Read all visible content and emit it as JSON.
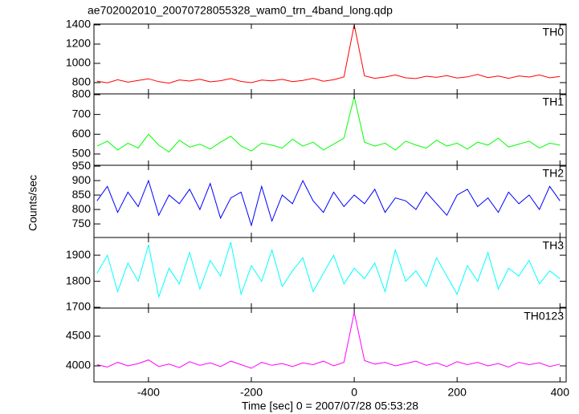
{
  "chart_data": [
    {
      "type": "line",
      "title": "ae702002010_20070728055328_wam0_trn_4band_long.qdp",
      "x": [
        -500,
        -480,
        -460,
        -440,
        -420,
        -400,
        -380,
        -360,
        -340,
        -320,
        -300,
        -280,
        -260,
        -240,
        -220,
        -200,
        -180,
        -160,
        -140,
        -120,
        -100,
        -80,
        -60,
        -40,
        -20,
        0,
        20,
        40,
        60,
        80,
        100,
        120,
        140,
        160,
        180,
        200,
        220,
        240,
        260,
        280,
        300,
        320,
        340,
        360,
        380,
        400
      ],
      "series": [
        {
          "name": "TH0",
          "color": "#ff0000",
          "values": [
            815,
            798,
            830,
            805,
            822,
            840,
            810,
            795,
            828,
            816,
            835,
            808,
            820,
            842,
            812,
            800,
            826,
            818,
            834,
            810,
            822,
            845,
            815,
            830,
            860,
            1400,
            870,
            845,
            858,
            880,
            850,
            842,
            866,
            855,
            872,
            848,
            860,
            885,
            852,
            868,
            845,
            870,
            858,
            880,
            850,
            865
          ]
        }
      ],
      "xlim": [
        -506,
        412
      ],
      "ylim": [
        683,
        1408
      ],
      "yticks": [
        800,
        1000,
        1200,
        1400
      ]
    },
    {
      "type": "line",
      "x": [
        -500,
        -480,
        -460,
        -440,
        -420,
        -400,
        -380,
        -360,
        -340,
        -320,
        -300,
        -280,
        -260,
        -240,
        -220,
        -200,
        -180,
        -160,
        -140,
        -120,
        -100,
        -80,
        -60,
        -40,
        -20,
        0,
        20,
        40,
        60,
        80,
        100,
        120,
        140,
        160,
        180,
        200,
        220,
        240,
        260,
        280,
        300,
        320,
        340,
        360,
        380,
        400
      ],
      "series": [
        {
          "name": "TH1",
          "color": "#00ff00",
          "values": [
            540,
            565,
            520,
            555,
            530,
            600,
            545,
            510,
            570,
            535,
            550,
            525,
            560,
            590,
            540,
            515,
            555,
            545,
            530,
            575,
            540,
            560,
            520,
            550,
            580,
            790,
            560,
            540,
            555,
            520,
            565,
            545,
            530,
            570,
            540,
            555,
            525,
            560,
            545,
            580,
            535,
            550,
            565,
            530,
            555,
            545
          ]
        }
      ],
      "xlim": [
        -506,
        412
      ],
      "ylim": [
        443,
        804
      ],
      "yticks": [
        500,
        600,
        700,
        800
      ]
    },
    {
      "type": "line",
      "ylabel": "Counts/sec",
      "x": [
        -500,
        -480,
        -460,
        -440,
        -420,
        -400,
        -380,
        -360,
        -340,
        -320,
        -300,
        -280,
        -260,
        -240,
        -220,
        -200,
        -180,
        -160,
        -140,
        -120,
        -100,
        -80,
        -60,
        -40,
        -20,
        0,
        20,
        40,
        60,
        80,
        100,
        120,
        140,
        160,
        180,
        200,
        220,
        240,
        260,
        280,
        300,
        320,
        340,
        360,
        380,
        400
      ],
      "series": [
        {
          "name": "TH2",
          "color": "#0000ff",
          "values": [
            830,
            880,
            790,
            860,
            810,
            900,
            780,
            850,
            820,
            870,
            800,
            890,
            770,
            840,
            860,
            745,
            880,
            760,
            850,
            820,
            900,
            830,
            790,
            860,
            810,
            850,
            820,
            870,
            790,
            840,
            830,
            800,
            860,
            820,
            780,
            850,
            870,
            810,
            840,
            790,
            860,
            820,
            850,
            800,
            880,
            830
          ]
        }
      ],
      "xlim": [
        -506,
        412
      ],
      "ylim": [
        703,
        953
      ],
      "yticks": [
        750,
        800,
        850,
        900,
        950
      ]
    },
    {
      "type": "line",
      "x": [
        -500,
        -480,
        -460,
        -440,
        -420,
        -400,
        -380,
        -360,
        -340,
        -320,
        -300,
        -280,
        -260,
        -240,
        -220,
        -200,
        -180,
        -160,
        -140,
        -120,
        -100,
        -80,
        -60,
        -40,
        -20,
        0,
        20,
        40,
        60,
        80,
        100,
        120,
        140,
        160,
        180,
        200,
        220,
        240,
        260,
        280,
        300,
        320,
        340,
        360,
        380,
        400
      ],
      "series": [
        {
          "name": "TH3",
          "color": "#00ffff",
          "values": [
            1830,
            1900,
            1760,
            1870,
            1800,
            1940,
            1740,
            1850,
            1790,
            1910,
            1770,
            1880,
            1820,
            1950,
            1750,
            1860,
            1800,
            1920,
            1780,
            1840,
            1890,
            1760,
            1830,
            1900,
            1790,
            1850,
            1810,
            1870,
            1760,
            1920,
            1800,
            1840,
            1780,
            1890,
            1820,
            1750,
            1860,
            1800,
            1910,
            1770,
            1850,
            1820,
            1880,
            1790,
            1840,
            1810
          ]
        }
      ],
      "xlim": [
        -506,
        412
      ],
      "ylim": [
        1697,
        1968
      ],
      "yticks": [
        1700,
        1800,
        1900
      ]
    },
    {
      "type": "line",
      "xlabel": "Time [sec] 0 = 2007/07/28 05:53:28",
      "x": [
        -500,
        -480,
        -460,
        -440,
        -420,
        -400,
        -380,
        -360,
        -340,
        -320,
        -300,
        -280,
        -260,
        -240,
        -220,
        -200,
        -180,
        -160,
        -140,
        -120,
        -100,
        -80,
        -60,
        -40,
        -20,
        0,
        20,
        40,
        60,
        80,
        100,
        120,
        140,
        160,
        180,
        200,
        220,
        240,
        260,
        280,
        300,
        320,
        340,
        360,
        380,
        400
      ],
      "series": [
        {
          "name": "TH0123",
          "color": "#ff00ff",
          "values": [
            4020,
            3980,
            4060,
            4000,
            4040,
            4100,
            3990,
            4030,
            3970,
            4070,
            4010,
            4050,
            3990,
            4080,
            4020,
            3960,
            4060,
            4010,
            4040,
            3990,
            4050,
            4020,
            4080,
            4000,
            4060,
            4900,
            4090,
            4030,
            4060,
            4000,
            4040,
            4080,
            4010,
            4050,
            3990,
            4070,
            4020,
            4060,
            4000,
            4040,
            3980,
            4060,
            4020,
            4050,
            3990,
            4030
          ]
        }
      ],
      "xlim": [
        -506,
        412
      ],
      "ylim": [
        3730,
        4973
      ],
      "yticks": [
        4000,
        4500
      ],
      "xticks": [
        -400,
        -200,
        0,
        200,
        400
      ]
    }
  ]
}
